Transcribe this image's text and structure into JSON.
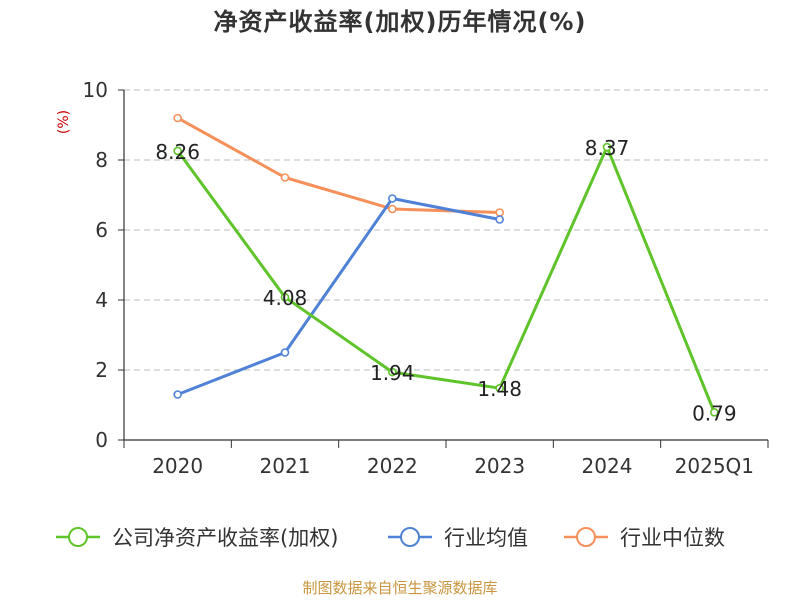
{
  "chart_data": {
    "type": "line",
    "title": "净资产收益率(加权)历年情况(%)",
    "ylabel": "(%)",
    "xlabel": "",
    "categories": [
      "2020",
      "2021",
      "2022",
      "2023",
      "2024",
      "2025Q1"
    ],
    "ylim": [
      0,
      10
    ],
    "yticks": [
      0,
      2,
      4,
      6,
      8,
      10
    ],
    "grid": true,
    "legend_position": "bottom",
    "series": [
      {
        "name": "公司净资产收益率(加权)",
        "color": "#5fc32a",
        "values": [
          8.26,
          4.08,
          1.94,
          1.48,
          8.37,
          0.79
        ],
        "labels": [
          "8.26",
          "4.08",
          "1.94",
          "1.48",
          "8.37",
          "0.79"
        ],
        "show_labels": true
      },
      {
        "name": "行业均值",
        "color": "#4f82d6",
        "values": [
          1.3,
          2.5,
          6.9,
          6.3,
          null,
          null
        ],
        "show_labels": false
      },
      {
        "name": "行业中位数",
        "color": "#f5905a",
        "values": [
          9.2,
          7.5,
          6.6,
          6.5,
          null,
          null
        ],
        "show_labels": false
      }
    ]
  },
  "source": "制图数据来自恒生聚源数据库"
}
